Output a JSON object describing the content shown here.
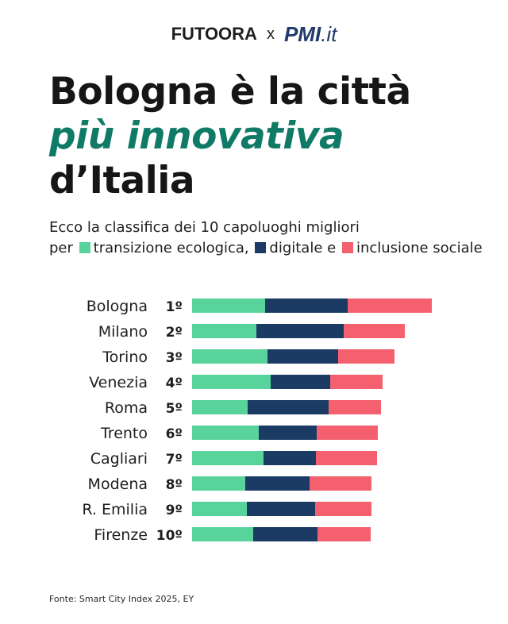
{
  "brand": {
    "left": "FUTOORA",
    "separator": "x",
    "right": "PMI",
    "right_suffix": ".it"
  },
  "headline": {
    "line1": "Bologna è la città",
    "line2": "più innovativa",
    "line3": "d’Italia"
  },
  "subtitle": {
    "line1": "Ecco la classifica dei 10 capoluoghi migliori",
    "prefix": "per",
    "legend1": "transizione ecologica,",
    "legend2": "digitale",
    "conj": "e",
    "legend3": "inclusione sociale"
  },
  "colors": {
    "green": "#59d39c",
    "navy": "#1b3a64",
    "red": "#f4606e",
    "accent": "#0f7a66"
  },
  "chart_data": {
    "type": "bar",
    "orientation": "horizontal",
    "stacked": true,
    "categories": [
      "Bologna",
      "Milano",
      "Torino",
      "Venezia",
      "Roma",
      "Trento",
      "Cagliari",
      "Modena",
      "R. Emilia",
      "Firenze"
    ],
    "ranks": [
      "1º",
      "2º",
      "3º",
      "4º",
      "5º",
      "6º",
      "7º",
      "8º",
      "9º",
      "10º"
    ],
    "series": [
      {
        "name": "transizione ecologica",
        "color": "#59d39c",
        "values": [
          92,
          81,
          95,
          99,
          70,
          84,
          90,
          67,
          69,
          77
        ]
      },
      {
        "name": "digitale",
        "color": "#1b3a64",
        "values": [
          104,
          110,
          89,
          75,
          102,
          73,
          66,
          81,
          86,
          81
        ]
      },
      {
        "name": "inclusione sociale",
        "color": "#f4606e",
        "values": [
          106,
          77,
          71,
          66,
          66,
          77,
          77,
          78,
          71,
          67
        ]
      }
    ],
    "axes_shown": false,
    "grid": false
  },
  "footer": {
    "source": "Fonte: Smart City Index 2025, EY"
  }
}
